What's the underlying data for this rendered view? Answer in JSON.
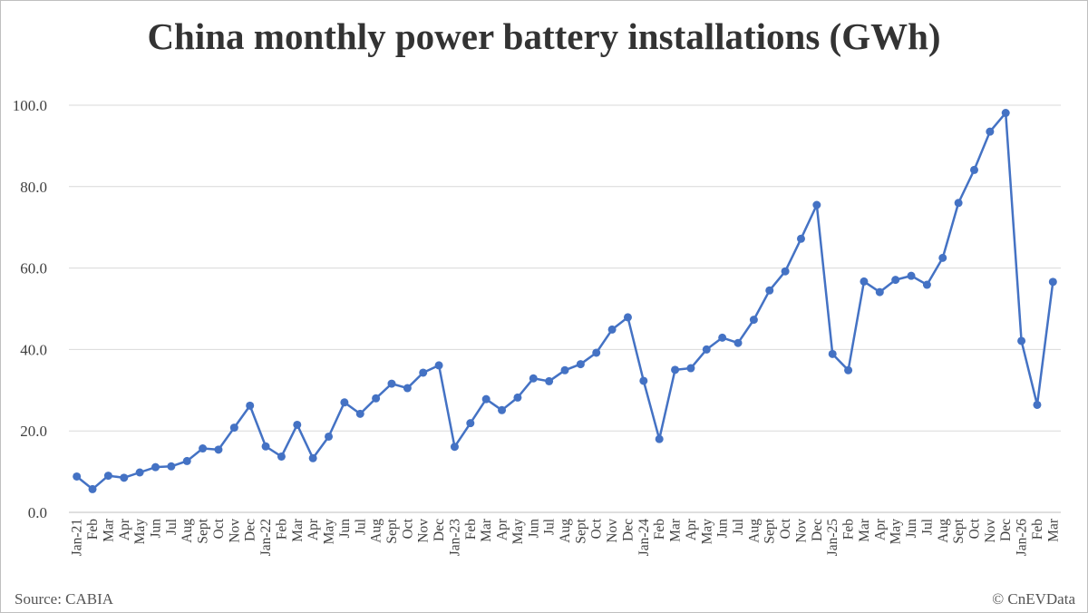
{
  "chart_data": {
    "type": "line",
    "title": "China monthly power battery installations (GWh)",
    "source": "Source: CABIA",
    "credit": "© CnEVData",
    "color": "#4472c4",
    "grid": true,
    "categories": [
      "Jan-21",
      "Feb",
      "Mar",
      "Apr",
      "May",
      "Jun",
      "Jul",
      "Aug",
      "Sept",
      "Oct",
      "Nov",
      "Dec",
      "Jan-22",
      "Feb",
      "Mar",
      "Apr",
      "May",
      "Jun",
      "Jul",
      "Aug",
      "Sept",
      "Oct",
      "Nov",
      "Dec",
      "Jan-23",
      "Feb",
      "Mar",
      "Apr",
      "May",
      "Jun",
      "Jul",
      "Aug",
      "Sept",
      "Oct",
      "Nov",
      "Dec",
      "Jan-24",
      "Feb",
      "Mar",
      "Apr",
      "May",
      "Jun",
      "Jul",
      "Aug",
      "Sept",
      "Oct",
      "Nov",
      "Dec",
      "Jan-25",
      "Feb",
      "Mar",
      "Apr",
      "May",
      "Jun",
      "Jul",
      "Aug",
      "Sept",
      "Oct",
      "Nov",
      "Dec",
      "Jan-26",
      "Feb",
      "Mar"
    ],
    "values": [
      8.8,
      5.7,
      9.0,
      8.5,
      9.8,
      11.1,
      11.3,
      12.6,
      15.7,
      15.4,
      20.8,
      26.2,
      16.2,
      13.7,
      21.5,
      13.3,
      18.6,
      27.0,
      24.2,
      28.0,
      31.6,
      30.5,
      34.3,
      36.1,
      16.1,
      21.9,
      27.8,
      25.1,
      28.2,
      32.9,
      32.2,
      34.9,
      36.4,
      39.2,
      44.9,
      47.9,
      32.3,
      18.0,
      35.0,
      35.4,
      40.0,
      42.9,
      41.6,
      47.3,
      54.5,
      59.2,
      67.2,
      75.5,
      38.9,
      34.9,
      56.7,
      54.1,
      57.1,
      58.1,
      55.9,
      62.5,
      76.0,
      84.1,
      93.5,
      98.1,
      42.1,
      26.4,
      56.6
    ],
    "ylim": [
      0,
      100
    ],
    "yticks": [
      {
        "value": 0,
        "label": "0.0"
      },
      {
        "value": 20,
        "label": "20.0"
      },
      {
        "value": 40,
        "label": "40.0"
      },
      {
        "value": 60,
        "label": "60.0"
      },
      {
        "value": 80,
        "label": "80.0"
      },
      {
        "value": 100,
        "label": "100.0"
      }
    ]
  }
}
